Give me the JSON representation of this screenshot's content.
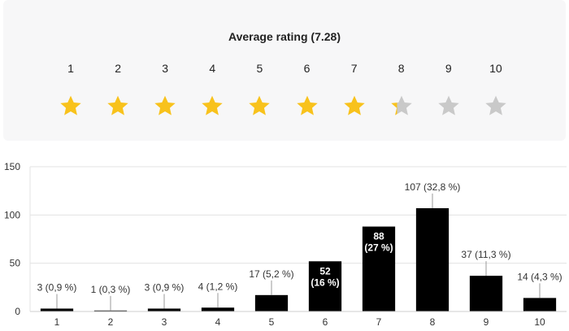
{
  "rating": {
    "title": "Average rating (7.28)",
    "average": 7.28,
    "max": 10,
    "numbers": [
      "1",
      "2",
      "3",
      "4",
      "5",
      "6",
      "7",
      "8",
      "9",
      "10"
    ],
    "filled_color": "#f8c21c",
    "empty_color": "#c9c9c9",
    "star_icon": "star-icon"
  },
  "chart_data": {
    "type": "bar",
    "categories": [
      "1",
      "2",
      "3",
      "4",
      "5",
      "6",
      "7",
      "8",
      "9",
      "10"
    ],
    "values": [
      3,
      1,
      3,
      4,
      17,
      52,
      88,
      107,
      37,
      14
    ],
    "labels": [
      "3 (0,9 %)",
      "1 (0,3 %)",
      "3 (0,9 %)",
      "4 (1,2 %)",
      "17 (5,2 %)",
      "52\n(16 %)",
      "88\n(27 %)",
      "107 (32,8 %)",
      "37 (11,3 %)",
      "14 (4,3 %)"
    ],
    "ylim": [
      0,
      150
    ],
    "yticks": [
      0,
      50,
      100,
      150
    ],
    "grid": true,
    "bar_color": "#000000",
    "title": "",
    "xlabel": "",
    "ylabel": ""
  }
}
